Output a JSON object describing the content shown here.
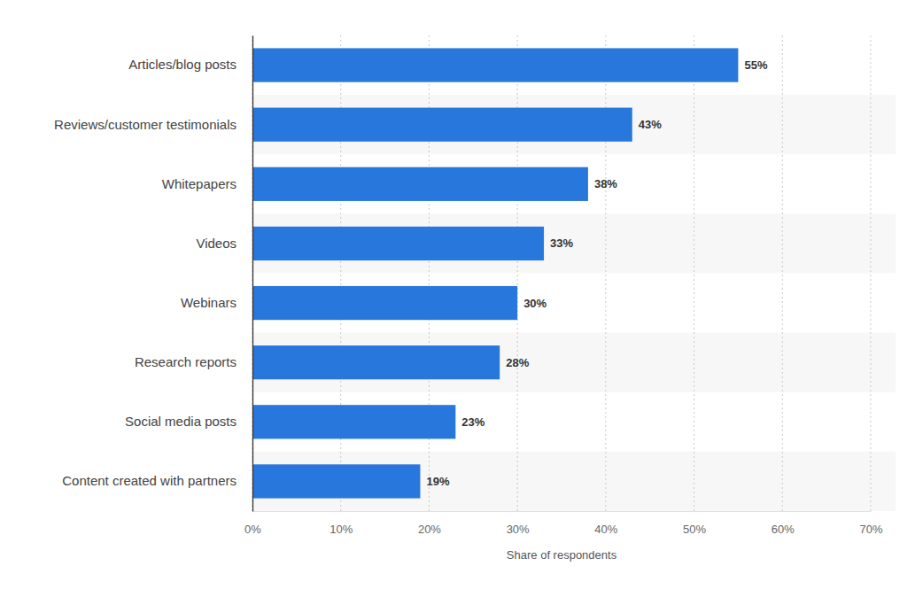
{
  "chart_data": {
    "type": "bar",
    "orientation": "horizontal",
    "categories": [
      "Articles/blog posts",
      "Reviews/customer testimonials",
      "Whitepapers",
      "Videos",
      "Webinars",
      "Research reports",
      "Social media posts",
      "Content created with partners"
    ],
    "values": [
      55,
      43,
      38,
      33,
      30,
      28,
      23,
      19
    ],
    "value_labels": [
      "55%",
      "43%",
      "38%",
      "33%",
      "30%",
      "28%",
      "23%",
      "19%"
    ],
    "data_labels": true,
    "color": "#2877dd",
    "x_label": "Share of respondents",
    "xlim": [
      0,
      70
    ],
    "xticks": [
      {
        "value": 0,
        "label": "0%"
      },
      {
        "value": 10,
        "label": "10%"
      },
      {
        "value": 20,
        "label": "20%"
      },
      {
        "value": 30,
        "label": "30%"
      },
      {
        "value": 40,
        "label": "40%"
      },
      {
        "value": 50,
        "label": "50%"
      },
      {
        "value": 60,
        "label": "60%"
      },
      {
        "value": 70,
        "label": "70%"
      }
    ],
    "grid": true
  }
}
